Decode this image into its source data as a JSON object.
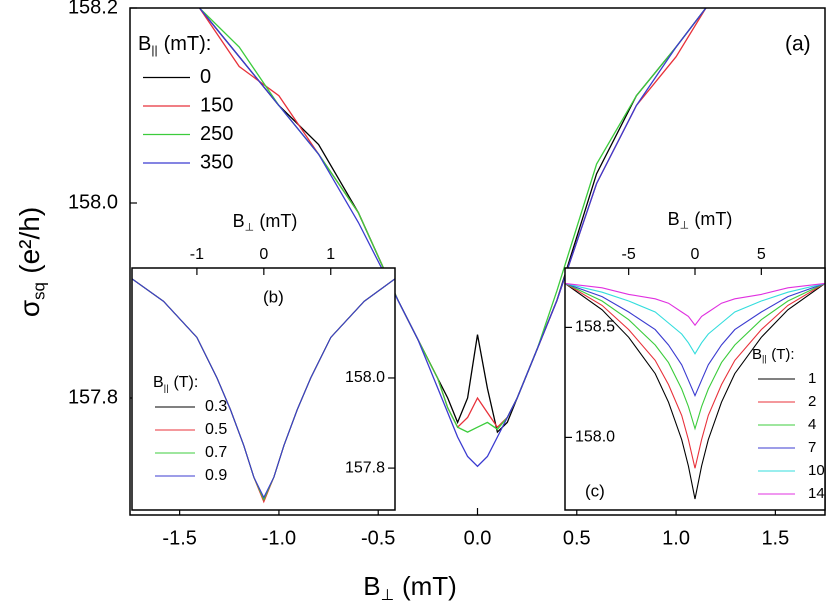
{
  "chart_data": [
    {
      "type": "line",
      "panel_label": "(a)",
      "xlabel": {
        "symbol": "B",
        "subscript": "⊥",
        "unit": "(mT)"
      },
      "ylabel": {
        "symbol": "σ",
        "subscript": "sq",
        "unit": "(e²/h)"
      },
      "xaxis_side": "bottom",
      "yaxis_side": "left",
      "xlim": [
        -1.75,
        1.75
      ],
      "ylim": [
        157.68,
        158.2
      ],
      "xticks": [
        -1.5,
        {
          "value": -1,
          "label": "-1.0"
        },
        -0.5,
        {
          "value": 0,
          "label": "0.0"
        },
        0.5,
        {
          "value": 1,
          "label": "1.0"
        },
        1.5
      ],
      "yticks": [
        {
          "value": 158.2,
          "label": "158.2"
        },
        {
          "value": 158,
          "label": "158.0"
        },
        {
          "value": 157.8,
          "label": "157.8"
        }
      ],
      "legend_title": {
        "symbol": "B",
        "subscript": "||",
        "unit": "(mT):"
      },
      "x": [
        -1.4,
        -1.2,
        -1.0,
        -0.8,
        -0.6,
        -0.4,
        -0.3,
        -0.2,
        -0.15,
        -0.1,
        -0.05,
        0,
        0.05,
        0.1,
        0.15,
        0.2,
        0.3,
        0.4,
        0.6,
        0.8,
        1.0,
        1.15
      ],
      "series": [
        {
          "name": "0",
          "color": "#000000",
          "values": [
            158.2,
            158.15,
            158.1,
            158.06,
            157.99,
            157.9,
            157.86,
            157.82,
            157.8,
            157.775,
            157.8,
            157.865,
            157.81,
            157.765,
            157.775,
            157.8,
            157.85,
            157.9,
            158.03,
            158.11,
            158.16,
            158.2
          ]
        },
        {
          "name": "150",
          "color": "#e8313a",
          "values": [
            158.2,
            158.14,
            158.11,
            158.05,
            157.99,
            157.9,
            157.86,
            157.82,
            157.79,
            157.77,
            157.78,
            157.8,
            157.785,
            157.77,
            157.78,
            157.8,
            157.85,
            157.9,
            158.02,
            158.1,
            158.15,
            158.2
          ]
        },
        {
          "name": "250",
          "color": "#3ccc3c",
          "values": [
            158.2,
            158.16,
            158.1,
            158.05,
            157.99,
            157.9,
            157.86,
            157.82,
            157.79,
            157.77,
            157.765,
            157.77,
            157.775,
            157.768,
            157.78,
            157.8,
            157.85,
            157.91,
            158.04,
            158.11,
            158.16,
            158.2
          ]
        },
        {
          "name": "350",
          "color": "#3b3bd0",
          "values": [
            158.2,
            158.15,
            158.1,
            158.05,
            157.98,
            157.9,
            157.86,
            157.81,
            157.785,
            157.76,
            157.74,
            157.73,
            157.74,
            157.76,
            157.78,
            157.8,
            157.85,
            157.9,
            158.02,
            158.1,
            158.16,
            158.2
          ]
        }
      ]
    },
    {
      "type": "line",
      "panel_label": "(b)",
      "xlabel": {
        "symbol": "B",
        "subscript": "⊥",
        "unit": "(mT)"
      },
      "xaxis_side": "top",
      "yaxis_side": "right",
      "xlim": [
        -1.97,
        1.96
      ],
      "ylim": [
        157.707,
        158.244
      ],
      "xticks": [
        -1,
        0,
        1
      ],
      "yticks": [
        {
          "value": 158,
          "label": "158.0"
        },
        {
          "value": 157.8,
          "label": "157.8"
        }
      ],
      "legend_title": {
        "symbol": "B",
        "subscript": "||",
        "unit": "(T):"
      },
      "x": [
        -1.97,
        -1.5,
        -1.0,
        -0.7,
        -0.5,
        -0.3,
        -0.15,
        0,
        0.15,
        0.3,
        0.5,
        0.7,
        1.0,
        1.5,
        1.96
      ],
      "series": [
        {
          "name": "0.3",
          "color": "#000000",
          "values": [
            158.22,
            158.17,
            158.09,
            158.0,
            157.93,
            157.85,
            157.78,
            157.73,
            157.78,
            157.85,
            157.93,
            158.0,
            158.09,
            158.17,
            158.22
          ]
        },
        {
          "name": "0.5",
          "color": "#e8313a",
          "values": [
            158.22,
            158.17,
            158.09,
            158.0,
            157.93,
            157.85,
            157.78,
            157.725,
            157.78,
            157.85,
            157.93,
            158.0,
            158.09,
            158.17,
            158.22
          ]
        },
        {
          "name": "0.7",
          "color": "#3ccc3c",
          "values": [
            158.22,
            158.17,
            158.09,
            158.0,
            157.93,
            157.85,
            157.78,
            157.73,
            157.78,
            157.85,
            157.93,
            158.0,
            158.09,
            158.17,
            158.22
          ]
        },
        {
          "name": "0.9",
          "color": "#3b3bd0",
          "values": [
            158.22,
            158.17,
            158.09,
            158.0,
            157.93,
            157.85,
            157.78,
            157.735,
            157.78,
            157.85,
            157.93,
            158.0,
            158.09,
            158.17,
            158.22
          ]
        }
      ]
    },
    {
      "type": "line",
      "panel_label": "(c)",
      "xlabel": {
        "symbol": "B",
        "subscript": "⊥",
        "unit": "(mT)"
      },
      "xaxis_side": "top",
      "yaxis_side": "left",
      "xlim": [
        -9.8,
        9.8
      ],
      "ylim": [
        157.67,
        158.77
      ],
      "xticks": [
        -5,
        0,
        5
      ],
      "yticks": [
        {
          "value": 158.5,
          "label": "158.5"
        },
        {
          "value": 158,
          "label": "158.0"
        }
      ],
      "legend_title": {
        "symbol": "B",
        "subscript": "||",
        "unit": "(T):"
      },
      "x": [
        -9.8,
        -7,
        -5,
        -3,
        -2,
        -1,
        -0.5,
        0,
        0.5,
        1,
        2,
        3,
        5,
        7,
        9.8
      ],
      "series": [
        {
          "name": "1",
          "color": "#000000",
          "values": [
            158.7,
            158.58,
            158.455,
            158.29,
            158.16,
            157.99,
            157.87,
            157.72,
            157.87,
            157.99,
            158.16,
            158.29,
            158.455,
            158.58,
            158.7
          ]
        },
        {
          "name": "2",
          "color": "#e8313a",
          "values": [
            158.7,
            158.6,
            158.49,
            158.35,
            158.24,
            158.1,
            157.99,
            157.86,
            157.99,
            158.1,
            158.24,
            158.35,
            158.49,
            158.6,
            158.7
          ]
        },
        {
          "name": "4",
          "color": "#3ccc3c",
          "values": [
            158.7,
            158.62,
            158.535,
            158.42,
            158.34,
            158.22,
            158.14,
            158.04,
            158.14,
            158.22,
            158.34,
            158.42,
            158.535,
            158.62,
            158.7
          ]
        },
        {
          "name": "7",
          "color": "#3b3bd0",
          "values": [
            158.7,
            158.64,
            158.57,
            158.49,
            158.42,
            158.33,
            158.26,
            158.19,
            158.26,
            158.33,
            158.42,
            158.49,
            158.57,
            158.64,
            158.7
          ]
        },
        {
          "name": "10",
          "color": "#33dddd",
          "values": [
            158.7,
            158.66,
            158.62,
            158.57,
            158.52,
            158.47,
            158.43,
            158.38,
            158.43,
            158.47,
            158.52,
            158.57,
            158.62,
            158.66,
            158.7
          ]
        },
        {
          "name": "14",
          "color": "#e030e0",
          "values": [
            158.7,
            158.68,
            158.65,
            158.63,
            158.61,
            158.57,
            158.55,
            158.51,
            158.55,
            158.57,
            158.61,
            158.63,
            158.65,
            158.68,
            158.7
          ]
        }
      ]
    }
  ]
}
